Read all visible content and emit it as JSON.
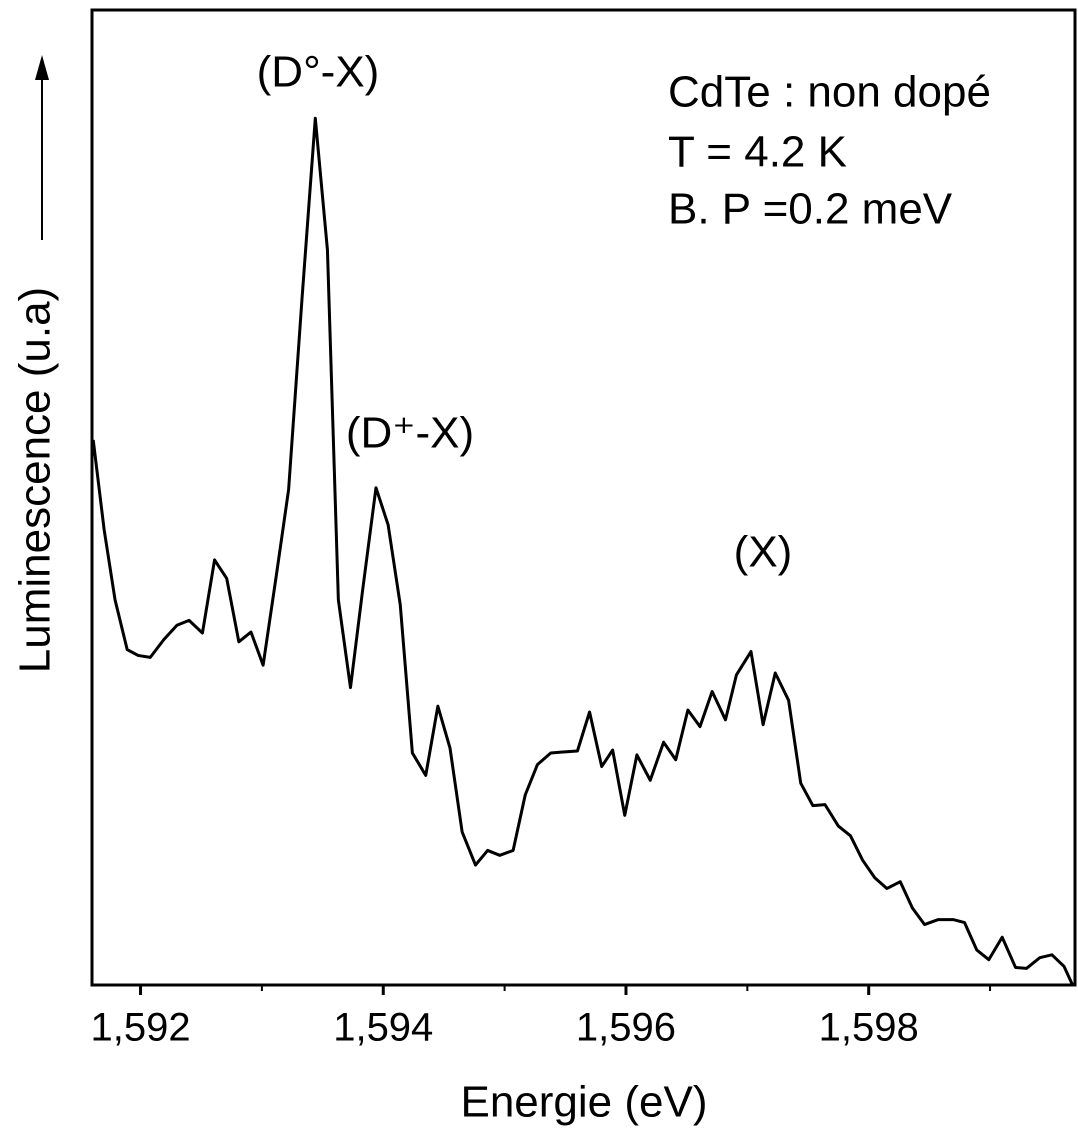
{
  "chart_data": {
    "type": "line",
    "x_label": "Energie (eV)",
    "y_label": "Luminescence (u.a)",
    "annotations": [
      "(D°-X)",
      "(D⁺-X)",
      "(X)"
    ],
    "info": [
      "CdTe : non dopé",
      "T = 4.2 K",
      "B. P =0.2 meV"
    ],
    "xlim": [
      1.5916,
      1.5997
    ],
    "ylim": [
      0,
      100
    ],
    "xticks": [
      {
        "value": 1.592,
        "label": "1,592"
      },
      {
        "value": 1.594,
        "label": "1,594"
      },
      {
        "value": 1.596,
        "label": "1,596"
      },
      {
        "value": 1.598,
        "label": "1,598"
      }
    ],
    "xminorticks": [
      1.593,
      1.595,
      1.597,
      1.599
    ],
    "series": [
      {
        "color": "#000000",
        "x": [
          1.59161,
          1.5917,
          1.59179,
          1.59189,
          1.59198,
          1.59208,
          1.59219,
          1.5923,
          1.5924,
          1.59251,
          1.59261,
          1.59271,
          1.59281,
          1.59291,
          1.59301,
          1.59312,
          1.59322,
          1.59333,
          1.59344,
          1.59354,
          1.59363,
          1.59373,
          1.59383,
          1.59394,
          1.59404,
          1.59414,
          1.59424,
          1.59435,
          1.59445,
          1.59455,
          1.59465,
          1.59476,
          1.59486,
          1.59496,
          1.59507,
          1.59517,
          1.59527,
          1.59538,
          1.59548,
          1.5956,
          1.5957,
          1.5958,
          1.59589,
          1.59599,
          1.59609,
          1.5962,
          1.59631,
          1.59641,
          1.59651,
          1.59661,
          1.59671,
          1.59682,
          1.59691,
          1.59703,
          1.59713,
          1.59723,
          1.59734,
          1.59744,
          1.59754,
          1.59764,
          1.59775,
          1.59785,
          1.59795,
          1.59805,
          1.59815,
          1.59826,
          1.59836,
          1.59846,
          1.59857,
          1.5987,
          1.59879,
          1.59889,
          1.59899,
          1.5991,
          1.59921,
          1.5993,
          1.59941,
          1.59951,
          1.59961,
          1.59968
        ],
        "values": [
          55.9,
          46.7,
          39.5,
          34.4,
          33.8,
          33.6,
          35.4,
          36.9,
          37.4,
          36.1,
          43.6,
          41.7,
          35.2,
          36.2,
          32.8,
          42.1,
          50.8,
          70.3,
          88.9,
          75.4,
          39.5,
          30.5,
          40.5,
          51.0,
          47.2,
          39.0,
          23.8,
          21.5,
          28.6,
          24.3,
          15.7,
          12.3,
          13.8,
          13.3,
          13.8,
          19.5,
          22.6,
          23.8,
          23.9,
          24.0,
          28.0,
          22.4,
          24.1,
          17.4,
          23.6,
          21.0,
          24.9,
          23.1,
          28.2,
          26.5,
          30.1,
          27.2,
          31.8,
          34.2,
          26.7,
          32.0,
          29.2,
          20.7,
          18.4,
          18.5,
          16.3,
          15.3,
          12.8,
          11.0,
          9.9,
          10.6,
          7.9,
          6.2,
          6.7,
          6.7,
          6.4,
          3.6,
          2.6,
          4.9,
          1.8,
          1.7,
          2.8,
          3.1,
          1.9,
          0
        ]
      }
    ]
  }
}
